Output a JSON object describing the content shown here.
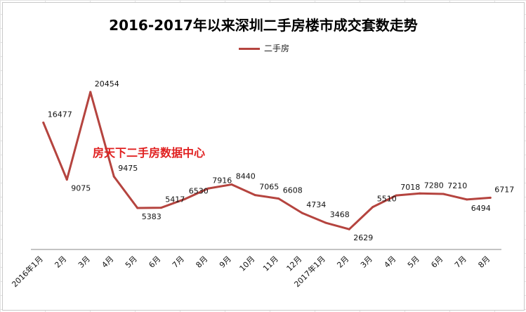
{
  "chart_data": {
    "type": "line",
    "title": "2016-2017年以来深圳二手房楼市成交套数走势",
    "categories": [
      "2016年1月",
      "2月",
      "3月",
      "4月",
      "5月",
      "6月",
      "7月",
      "8月",
      "9月",
      "10月",
      "11月",
      "12月",
      "2017年1月",
      "2月",
      "3月",
      "4月",
      "5月",
      "6月",
      "7月",
      "8月"
    ],
    "series": [
      {
        "name": "二手房",
        "color": "#b5443f",
        "values": [
          16477,
          9075,
          20454,
          9475,
          5383,
          5417,
          6530,
          7916,
          8440,
          7065,
          6608,
          4734,
          3468,
          2629,
          5510,
          7018,
          7280,
          7210,
          6494,
          6717
        ]
      }
    ],
    "ylim": [
      0,
      22000
    ],
    "legend_position": "top-center",
    "watermark": "房天下二手房数据中心"
  }
}
